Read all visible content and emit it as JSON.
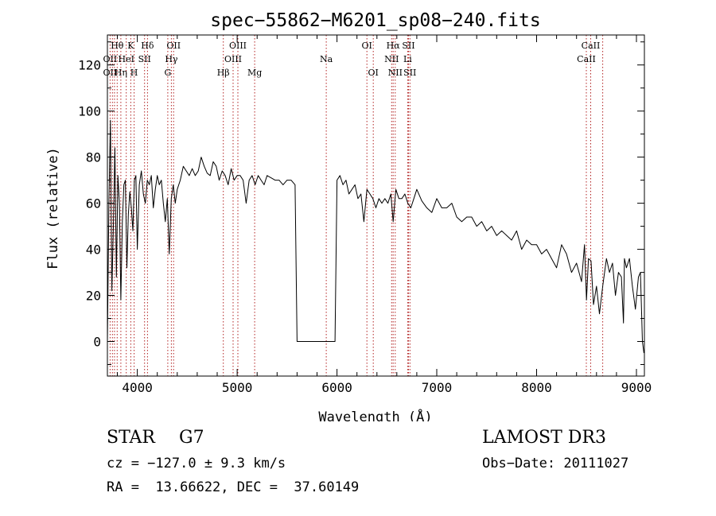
{
  "chart_data": {
    "type": "line",
    "title": "spec−55862−M6201_sp08−240.fits",
    "xlabel": "Wavelength (Å)",
    "ylabel": "Flux (relative)",
    "xlim": [
      3700,
      9080
    ],
    "ylim": [
      -15,
      133
    ],
    "xticks": [
      4000,
      5000,
      6000,
      7000,
      8000,
      9000
    ],
    "yticks": [
      0,
      20,
      40,
      60,
      80,
      100,
      120
    ],
    "grid": false,
    "series": [
      {
        "name": "flux",
        "x": [
          3700,
          3715,
          3730,
          3745,
          3760,
          3775,
          3790,
          3805,
          3820,
          3835,
          3850,
          3865,
          3880,
          3895,
          3910,
          3925,
          3940,
          3955,
          3970,
          3985,
          4000,
          4020,
          4040,
          4060,
          4080,
          4100,
          4120,
          4140,
          4160,
          4180,
          4200,
          4220,
          4240,
          4260,
          4280,
          4300,
          4320,
          4340,
          4360,
          4380,
          4400,
          4430,
          4460,
          4490,
          4520,
          4550,
          4580,
          4610,
          4640,
          4670,
          4700,
          4730,
          4760,
          4790,
          4820,
          4850,
          4880,
          4910,
          4940,
          4970,
          5000,
          5030,
          5060,
          5090,
          5120,
          5150,
          5180,
          5210,
          5240,
          5270,
          5300,
          5340,
          5380,
          5420,
          5460,
          5500,
          5540,
          5580,
          5600,
          5620,
          5625,
          5630,
          5640,
          5700,
          5800,
          5900,
          5960,
          5965,
          5970,
          5980,
          6000,
          6030,
          6060,
          6090,
          6120,
          6150,
          6180,
          6210,
          6240,
          6270,
          6300,
          6330,
          6360,
          6390,
          6420,
          6450,
          6480,
          6510,
          6540,
          6563,
          6590,
          6620,
          6650,
          6680,
          6710,
          6740,
          6770,
          6800,
          6850,
          6900,
          6950,
          7000,
          7050,
          7100,
          7150,
          7200,
          7250,
          7300,
          7350,
          7400,
          7450,
          7500,
          7550,
          7600,
          7650,
          7700,
          7750,
          7800,
          7850,
          7900,
          7950,
          8000,
          8050,
          8100,
          8150,
          8200,
          8250,
          8300,
          8350,
          8400,
          8450,
          8480,
          8500,
          8520,
          8545,
          8570,
          8600,
          8630,
          8662,
          8700,
          8730,
          8760,
          8790,
          8820,
          8850,
          8870,
          8880,
          8900,
          8930,
          8960,
          8990,
          9020,
          9040,
          9050,
          9060,
          9075
        ],
        "values": [
          0,
          60,
          96,
          22,
          50,
          84,
          28,
          72,
          60,
          18,
          52,
          68,
          70,
          32,
          55,
          65,
          58,
          48,
          70,
          72,
          40,
          68,
          74,
          64,
          60,
          70,
          68,
          72,
          58,
          66,
          72,
          68,
          70,
          60,
          52,
          62,
          38,
          62,
          68,
          60,
          66,
          70,
          76,
          74,
          72,
          75,
          72,
          74,
          80,
          76,
          73,
          72,
          78,
          76,
          70,
          74,
          72,
          68,
          75,
          70,
          72,
          72,
          70,
          60,
          70,
          72,
          68,
          72,
          70,
          68,
          72,
          71,
          70,
          70,
          68,
          70,
          70,
          68,
          0,
          0,
          0,
          0,
          0,
          0,
          0,
          0,
          0,
          0,
          0,
          0,
          70,
          72,
          68,
          70,
          64,
          66,
          68,
          62,
          64,
          52,
          66,
          64,
          62,
          58,
          62,
          60,
          62,
          60,
          64,
          52,
          66,
          62,
          62,
          64,
          60,
          58,
          62,
          66,
          61,
          58,
          56,
          62,
          58,
          58,
          60,
          54,
          52,
          54,
          54,
          50,
          52,
          48,
          50,
          46,
          48,
          46,
          44,
          48,
          40,
          44,
          42,
          42,
          38,
          40,
          36,
          32,
          42,
          38,
          30,
          34,
          26,
          42,
          18,
          36,
          35,
          16,
          24,
          12,
          24,
          36,
          30,
          34,
          20,
          30,
          28,
          8,
          36,
          32,
          36,
          24,
          14,
          28,
          30,
          16,
          0,
          -5
        ],
        "color": "#000000"
      }
    ],
    "line_labels": [
      {
        "label": "Hθ",
        "x": 3798
      },
      {
        "label": "K",
        "x": 3934
      },
      {
        "label": "Hδ",
        "x": 4102
      },
      {
        "label": "OII",
        "x": 4363
      },
      {
        "label": "OIII",
        "x": 5007
      },
      {
        "label": "OI",
        "x": 6300
      },
      {
        "label": "Hα",
        "x": 6563
      },
      {
        "label": "SII",
        "x": 6717
      },
      {
        "label": "CaII",
        "x": 8542
      },
      {
        "label": "OII",
        "x": 3727
      },
      {
        "label": "HeI",
        "x": 3889
      },
      {
        "label": "SII",
        "x": 4072
      },
      {
        "label": "Hγ",
        "x": 4341
      },
      {
        "label": "OIII",
        "x": 4959
      },
      {
        "label": "Na",
        "x": 5893
      },
      {
        "label": "NII",
        "x": 6548
      },
      {
        "label": "Li",
        "x": 6708
      },
      {
        "label": "CaII",
        "x": 8498
      },
      {
        "label": "OII",
        "x": 3727
      },
      {
        "label": "Hη",
        "x": 3835
      },
      {
        "label": "H",
        "x": 3968
      },
      {
        "label": "G",
        "x": 4305
      },
      {
        "label": "Hβ",
        "x": 4861
      },
      {
        "label": "Mg",
        "x": 5175
      },
      {
        "label": "OI",
        "x": 6364
      },
      {
        "label": "NII",
        "x": 6584
      },
      {
        "label": "SII",
        "x": 6731
      },
      {
        "label": "CaII",
        "x": 8662
      }
    ],
    "vlines": [
      3727,
      3750,
      3771,
      3798,
      3835,
      3889,
      3934,
      3968,
      4072,
      4102,
      4305,
      4341,
      4363,
      4861,
      4959,
      5007,
      5175,
      5893,
      6300,
      6364,
      6548,
      6563,
      6584,
      6708,
      6717,
      6731,
      8498,
      8542,
      8662
    ]
  },
  "info": {
    "class": "STAR",
    "subclass": "G7",
    "survey": "LAMOST DR3",
    "cz": "cz = −127.0 ± 9.3 km/s",
    "obs_date": "Obs−Date: 20111027",
    "radec": "RA =  13.66622, DEC =  37.60149"
  }
}
